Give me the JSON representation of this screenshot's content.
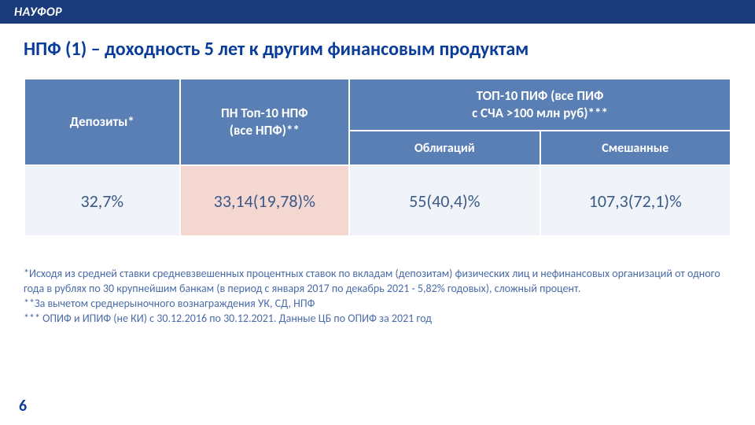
{
  "logo": "НАУФОР",
  "title": "НПФ (1) – доходность 5 лет к другим финансовым продуктам",
  "table": {
    "headers": {
      "col1": "Депозиты*",
      "col2": "ПН Топ-10 НПФ\n(все НПФ)**",
      "col3_main": "ТОП-10 ПИФ (все ПИФ\nс СЧА >100 млн руб)***",
      "col3_sub1": "Облигаций",
      "col3_sub2": "Смешанные"
    },
    "values": {
      "v1": "32,7%",
      "v2": "33,14(19,78)%",
      "v3": "55(40,4)%",
      "v4": "107,3(72,1)%"
    },
    "colors": {
      "header_bg": "#5a7fb5",
      "header_text": "#ffffff",
      "data_bg": "#f0f3f7",
      "highlight_bg": "#f5d7d2",
      "data_text": "#3a5a8a",
      "border": "#ffffff"
    },
    "col_widths_pct": [
      22,
      24,
      27,
      27
    ]
  },
  "footnotes": {
    "f1": "*Исходя из средней ставки средневзвешенных процентных ставок по вкладам (депозитам) физических лиц и нефинансовых организаций от одного года в рублях по 30 крупнейшим банкам (в период с января 2017 по декабрь 2021 - 5,82% годовых), сложный процент.",
    "f2": "**За вычетом среднерыночного вознаграждения УК, СД, НПФ",
    "f3": "*** ОПИФ и ИПИФ (не КИ) с 30.12.2016 по 30.12.2021. Данные ЦБ по ОПИФ за 2021 год"
  },
  "page_number": "6"
}
